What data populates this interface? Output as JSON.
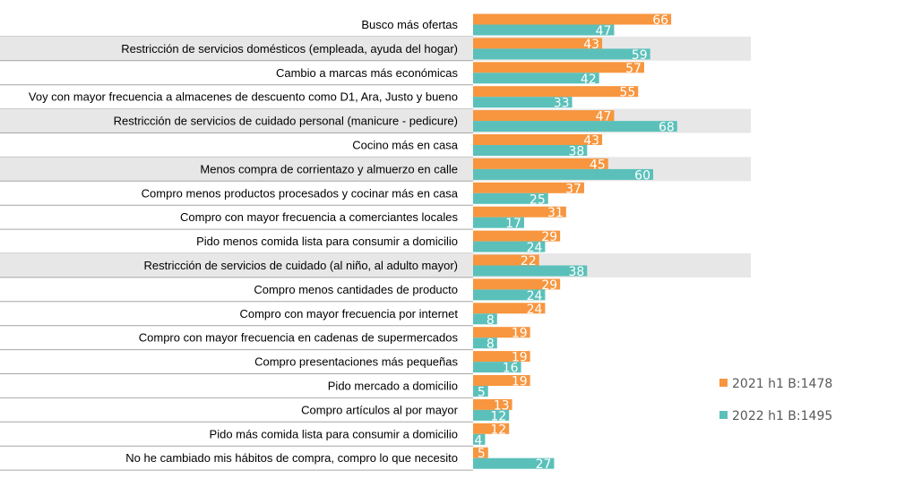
{
  "chart_data": {
    "type": "bar",
    "orientation": "horizontal",
    "categories": [
      "Busco más ofertas",
      "Restricción de servicios domésticos (empleada, ayuda del hogar)",
      "Cambio a marcas más económicas",
      "Voy con mayor frecuencia a almacenes de descuento como D1, Ara, Justo y bueno",
      "Restricción de servicios de cuidado personal (manicure  - pedicure)",
      "Cocino más en casa",
      "Menos compra de corrientazo y almuerzo en calle",
      "Compro menos productos procesados y cocinar más en casa",
      "Compro con mayor frecuencia a comerciantes  locales",
      "Pido menos comida lista para consumir a domicilio",
      "Restricción de servicios de cuidado (al niño, al adulto mayor)",
      "Compro menos cantidades de producto",
      "Compro con mayor frecuencia por internet",
      "Compro con mayor frecuencia en cadenas de supermercados",
      "Compro presentaciones más pequeñas",
      "Pido mercado a domicilio",
      "Compro artículos al por mayor",
      "Pido más comida lista para consumir a domicilio",
      "No he cambiado mis hábitos de compra, compro lo que necesito"
    ],
    "highlighted_rows": [
      1,
      4,
      6,
      10
    ],
    "series": [
      {
        "name": "2021 h1 B:1478",
        "color": "#F7963F",
        "values": [
          66,
          43,
          57,
          55,
          47,
          43,
          45,
          37,
          31,
          29,
          22,
          29,
          24,
          19,
          19,
          19,
          13,
          12,
          5
        ]
      },
      {
        "name": "2022 h1 B:1495",
        "color": "#5BC0BA",
        "values": [
          47,
          59,
          42,
          33,
          68,
          38,
          60,
          25,
          17,
          24,
          38,
          24,
          8,
          8,
          16,
          5,
          12,
          4,
          27
        ]
      }
    ],
    "legend_position": "right",
    "grid": false,
    "row_highlight_color": "#E7E7E7",
    "row_line_color": "#A6A6A6"
  }
}
